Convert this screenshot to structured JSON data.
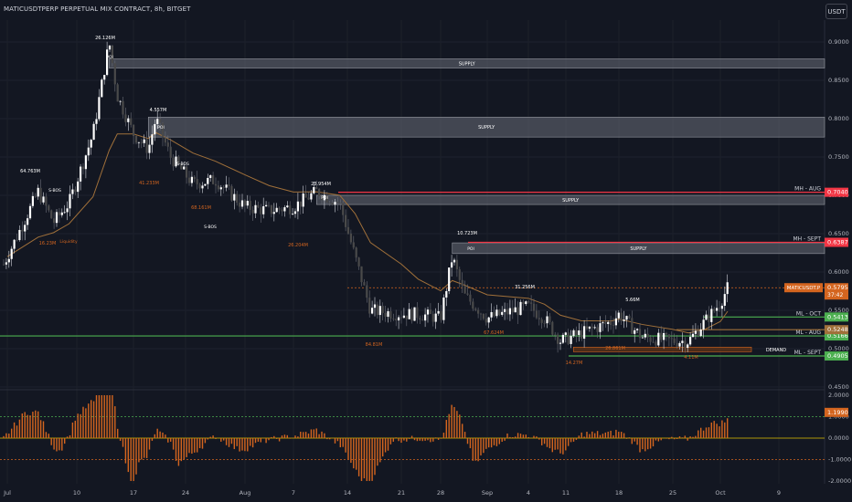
{
  "header": {
    "title": "MATICUSDTPERP PERPETUAL MIX CONTRACT, 8h, BITGET",
    "currency_button": "USDT"
  },
  "colors": {
    "background": "#131722",
    "bull": "#ffffff",
    "bear": "#4a4a4a",
    "orange": "#d4651f",
    "red_line": "#f23645",
    "green_line": "#4caf50",
    "ma": "#a0703a",
    "zone_grey": "#5d606b"
  },
  "chart_data": [
    {
      "type": "candlestick",
      "symbol": "MATICUSDTPERP",
      "timeframe": "8h",
      "ylim": [
        0.42,
        0.92
      ],
      "y_ticks": [
        "0.9000",
        "0.8500",
        "0.8000",
        "0.7500",
        "0.7000",
        "0.6500",
        "0.6000",
        "0.5500",
        "0.5000",
        "0.4500"
      ],
      "x_ticks": [
        "Jul",
        "10",
        "17",
        "24",
        "Aug",
        "7",
        "14",
        "21",
        "28",
        "Sep",
        "4",
        "11",
        "18",
        "25",
        "Oct",
        "9"
      ],
      "price_path": [
        {
          "date": "Jul 1",
          "price": 0.62
        },
        {
          "date": "Jul 5",
          "price": 0.705
        },
        {
          "date": "Jul 7",
          "price": 0.665
        },
        {
          "date": "Jul 9",
          "price": 0.69
        },
        {
          "date": "Jul 12",
          "price": 0.78
        },
        {
          "date": "Jul 14",
          "price": 0.9
        },
        {
          "date": "Jul 15",
          "price": 0.83
        },
        {
          "date": "Jul 17",
          "price": 0.78
        },
        {
          "date": "Jul 19",
          "price": 0.76
        },
        {
          "date": "Jul 20",
          "price": 0.8
        },
        {
          "date": "Jul 22",
          "price": 0.75
        },
        {
          "date": "Jul 25",
          "price": 0.715
        },
        {
          "date": "Jul 28",
          "price": 0.72
        },
        {
          "date": "Aug 1",
          "price": 0.685
        },
        {
          "date": "Aug 4",
          "price": 0.68
        },
        {
          "date": "Aug 7",
          "price": 0.685
        },
        {
          "date": "Aug 10",
          "price": 0.705
        },
        {
          "date": "Aug 13",
          "price": 0.69
        },
        {
          "date": "Aug 15",
          "price": 0.62
        },
        {
          "date": "Aug 17",
          "price": 0.55
        },
        {
          "date": "Aug 21",
          "price": 0.545
        },
        {
          "date": "Aug 24",
          "price": 0.545
        },
        {
          "date": "Aug 28",
          "price": 0.54
        },
        {
          "date": "Aug 29",
          "price": 0.62
        },
        {
          "date": "Aug 30",
          "price": 0.57
        },
        {
          "date": "Sep 1",
          "price": 0.54
        },
        {
          "date": "Sep 4",
          "price": 0.555
        },
        {
          "date": "Sep 7",
          "price": 0.54
        },
        {
          "date": "Sep 10",
          "price": 0.51
        },
        {
          "date": "Sep 13",
          "price": 0.52
        },
        {
          "date": "Sep 17",
          "price": 0.535
        },
        {
          "date": "Sep 18",
          "price": 0.545
        },
        {
          "date": "Sep 21",
          "price": 0.515
        },
        {
          "date": "Sep 25",
          "price": 0.51
        },
        {
          "date": "Sep 27",
          "price": 0.51
        },
        {
          "date": "Sep 29",
          "price": 0.535
        },
        {
          "date": "Oct 1",
          "price": 0.56
        },
        {
          "date": "Oct 2",
          "price": 0.5795
        }
      ],
      "supply_zones": [
        {
          "label": "SUPPLY",
          "from": "Jul 14",
          "top": 0.878,
          "bottom": 0.866
        },
        {
          "label": "SUPPLY",
          "from": "Jul 19",
          "top": 0.802,
          "bottom": 0.776
        },
        {
          "label": "SUPPLY",
          "from": "Aug 10",
          "top": 0.7,
          "bottom": 0.688
        },
        {
          "label": "SUPPLY",
          "from": "Aug 29",
          "top": 0.638,
          "bottom": 0.624
        },
        {
          "label": "DEMAND",
          "from": "Sep 12",
          "top": 0.502,
          "bottom": 0.496
        }
      ],
      "price_levels": [
        {
          "name": "MH - AUG",
          "value": "0.7040",
          "price": 0.704,
          "color": "#f23645"
        },
        {
          "name": "MH - SEPT",
          "value": "0.6387",
          "price": 0.6387,
          "color": "#f23645"
        },
        {
          "name": "MATICUSDT.P",
          "value": "0.5795",
          "timer": "37:42",
          "price": 0.5795,
          "color": "#d4651f"
        },
        {
          "name": "ML - OCT",
          "value": "0.5413",
          "price": 0.5413,
          "color": "#4caf50"
        },
        {
          "name": "ML - AUG",
          "value": "0.5166",
          "price": 0.5166,
          "color": "#4caf50"
        },
        {
          "name": "",
          "value": "0.5248",
          "price": 0.5248,
          "color": "#a0703a"
        },
        {
          "name": "ML - SEPT",
          "value": "0.4905",
          "price": 0.4905,
          "color": "#4caf50"
        }
      ],
      "volume_labels": [
        "26.126M",
        "4.557M",
        "64.763M",
        "23.954M",
        "10.723M",
        "31.256M",
        "5.66M",
        "41.233M",
        "68.161M",
        "16.23M",
        "26.204M",
        "84.81M",
        "67.624M",
        "14.27M",
        "26.861M",
        "4.11M"
      ],
      "annotations": [
        "POI",
        "S-BOS",
        "Liquidity",
        "DEMAND"
      ]
    },
    {
      "type": "histogram",
      "name": "oscillator",
      "ylim": [
        -2.2,
        2.2
      ],
      "y_ticks": [
        "2.0000",
        "1.0000",
        "0.0000",
        "-1.0000",
        "-2.0000"
      ],
      "current_value": "1.1990",
      "threshold": 1.0
    }
  ]
}
